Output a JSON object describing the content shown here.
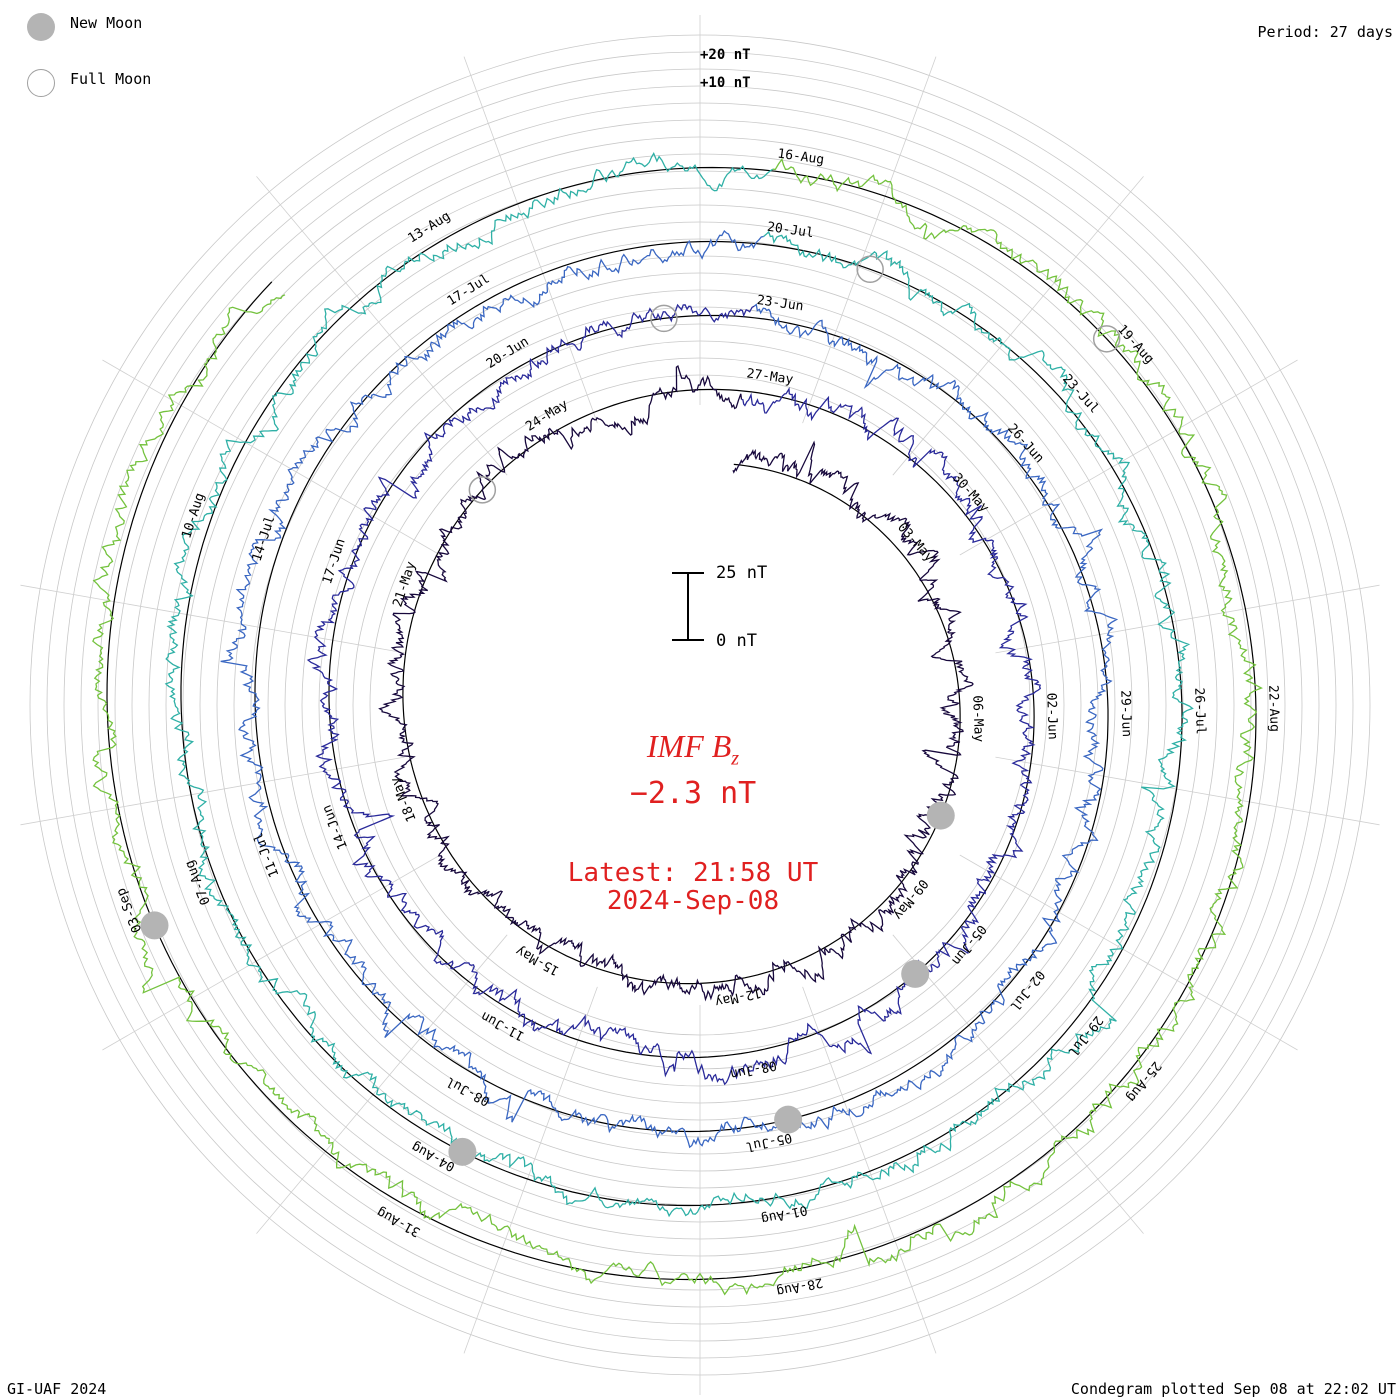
{
  "legend": {
    "new_moon": "New Moon",
    "full_moon": "Full Moon"
  },
  "period": "Period: 27 days",
  "footer_left": "GI-UAF 2024",
  "footer_right": "Condegram plotted Sep 08 at 22:02 UT",
  "reference_labels": {
    "plus20": "+20 nT",
    "plus10": "+10 nT"
  },
  "scale_bar": {
    "top": "25 nT",
    "bottom": "0 nT"
  },
  "center": {
    "title": "IMF B",
    "title_sub": "z",
    "value": "−2.3 nT",
    "latest": "Latest: 21:58 UT",
    "date": "2024-Sep-08"
  },
  "chart_data": {
    "type": "line",
    "subtype": "condegram (spiral time series, one revolution = 27 days)",
    "quantity": "IMF Bz",
    "units": "nT",
    "period_days": 27,
    "start_date": "2024-04-30",
    "end_date": "2024-09-08",
    "latest_value": -2.3,
    "reference_levels_nT": [
      10,
      20
    ],
    "scale_bar_nT": [
      0,
      25
    ],
    "colors": [
      "#17083c",
      "#2a2a9a",
      "#3a67c2",
      "#2fb0a6",
      "#74c23e",
      "#b0a01f",
      "#c9741a",
      "#c42a0a"
    ],
    "date_labels": [
      "03-May",
      "06-May",
      "09-May",
      "12-May",
      "15-May",
      "18-May",
      "21-May",
      "24-May",
      "27-May",
      "30-May",
      "02-Jun",
      "05-Jun",
      "08-Jun",
      "11-Jun",
      "14-Jun",
      "17-Jun",
      "20-Jun",
      "23-Jun",
      "26-Jun",
      "29-Jun",
      "02-Jul",
      "05-Jul",
      "08-Jul",
      "11-Jul",
      "14-Jul",
      "17-Jul",
      "20-Jul",
      "23-Jul",
      "26-Jul",
      "29-Jul",
      "01-Aug",
      "04-Aug",
      "07-Aug",
      "10-Aug",
      "13-Aug",
      "16-Aug",
      "19-Aug",
      "22-Aug",
      "25-Aug",
      "28-Aug",
      "31-Aug",
      "03-Sep"
    ],
    "new_moons": [
      "2024-05-08",
      "2024-06-06",
      "2024-07-05",
      "2024-08-04",
      "2024-09-03"
    ],
    "full_moons": [
      "2024-05-23",
      "2024-06-22",
      "2024-07-21",
      "2024-08-19"
    ]
  }
}
